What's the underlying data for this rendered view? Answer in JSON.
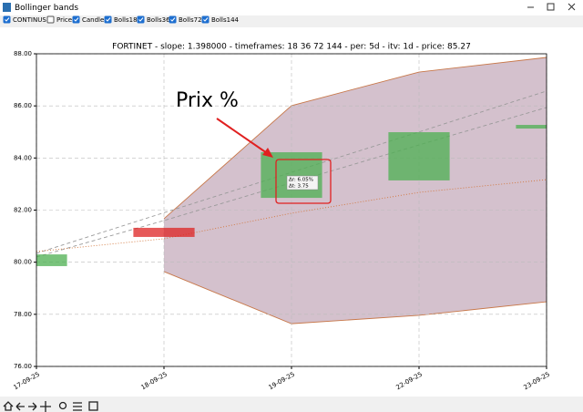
{
  "window": {
    "title": "Bollinger bands"
  },
  "controls": [
    {
      "label": "CONTINUS",
      "checked": true
    },
    {
      "label": "Price",
      "checked": false
    },
    {
      "label": "Candle",
      "checked": true
    },
    {
      "label": "Bolls18",
      "checked": true
    },
    {
      "label": "Bolls36",
      "checked": true
    },
    {
      "label": "Bolls72",
      "checked": true
    },
    {
      "label": "Bolls144",
      "checked": true
    }
  ],
  "chart_data": {
    "type": "candlestick",
    "title": "FORTINET - slope: 1.398000 - timeframes: 18 36 72 144 - per: 5d - itv: 1d - price: 85.27",
    "categories": [
      "17-09-25",
      "18-09-25",
      "19-09-25",
      "22-09-25",
      "23-09-25"
    ],
    "open": [
      79.85,
      81.32,
      82.47,
      83.14,
      85.13
    ],
    "close": [
      80.3,
      80.97,
      84.22,
      84.99,
      85.27
    ],
    "up_color": "#4caf50",
    "down_color": "#dd2222",
    "bands": {
      "upper": [
        null,
        81.67,
        86.01,
        87.3,
        87.86
      ],
      "lower": [
        null,
        79.64,
        77.64,
        77.96,
        78.48
      ],
      "fill": "#d4c1cd",
      "color": "#c8784a"
    },
    "lines": [
      {
        "values": [
          80.34,
          81.9,
          83.45,
          85.0,
          86.57
        ],
        "color": "#9a9a9a",
        "style": "dashed"
      },
      {
        "values": [
          80.2,
          81.6,
          83.05,
          84.5,
          85.94
        ],
        "color": "#9a9a9a",
        "style": "dashed"
      },
      {
        "values": [
          80.41,
          80.9,
          81.88,
          82.68,
          83.17
        ],
        "color": "#d2753a",
        "style": "dotted"
      }
    ],
    "ylim": [
      76,
      88
    ],
    "yticks": [
      {
        "value": 76,
        "label": "76.00"
      },
      {
        "value": 78,
        "label": "78.00"
      },
      {
        "value": 80,
        "label": "80.00"
      },
      {
        "value": 82,
        "label": "82.00"
      },
      {
        "value": 84,
        "label": "84.00"
      },
      {
        "value": 86,
        "label": "86.00"
      },
      {
        "value": 88,
        "label": "88.00"
      }
    ],
    "grid": true,
    "annotations": [
      {
        "text": "Prix %",
        "color": "#e02020"
      },
      {
        "text": "Δr: 6.05%"
      },
      {
        "text": "Δt: 3.75"
      }
    ]
  }
}
